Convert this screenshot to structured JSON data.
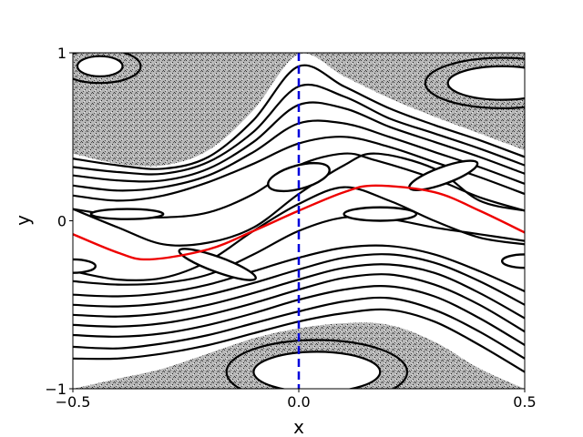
{
  "chart_data": {
    "type": "line",
    "title": "",
    "xlabel": "x",
    "ylabel": "y",
    "xlim": [
      -0.5,
      0.5
    ],
    "ylim": [
      -1,
      1
    ],
    "xticks": [
      -0.5,
      0.0,
      0.5
    ],
    "xtick_labels": [
      "−0.5",
      "0.0",
      "0.5"
    ],
    "yticks": [
      -1,
      0,
      1
    ],
    "ytick_labels": [
      "−1",
      "0",
      "1"
    ],
    "grid": false,
    "legend": "none",
    "colors": {
      "orbit": "#000000",
      "shearless_curve": "#ee0000",
      "marker_line": "#0000dd",
      "chaotic_sea": "#555555"
    },
    "marker_line": {
      "x": 0.0,
      "style": "dashed"
    },
    "chaotic_region_boundaries": {
      "upper_lower_edge": {
        "x": [
          -0.5,
          -0.4,
          -0.3,
          -0.2,
          -0.1,
          0.0,
          0.1,
          0.2,
          0.3,
          0.4,
          0.5
        ],
        "y": [
          0.4,
          0.34,
          0.33,
          0.42,
          0.66,
          0.99,
          0.86,
          0.73,
          0.62,
          0.52,
          0.42
        ]
      },
      "lower_upper_edge": {
        "x": [
          -0.5,
          -0.4,
          -0.3,
          -0.2,
          -0.1,
          0.0,
          0.1,
          0.2,
          0.3,
          0.4,
          0.5
        ],
        "y": [
          -1.0,
          -0.94,
          -0.88,
          -0.79,
          -0.7,
          -0.64,
          -0.61,
          -0.62,
          -0.72,
          -0.88,
          -1.0
        ]
      }
    },
    "series": [
      {
        "role": "shearless_curve",
        "x": [
          -0.5,
          -0.4,
          -0.33,
          -0.2,
          -0.1,
          0.0,
          0.1,
          0.17,
          0.3,
          0.4,
          0.5
        ],
        "y": [
          -0.08,
          -0.19,
          -0.23,
          -0.17,
          -0.06,
          0.06,
          0.17,
          0.21,
          0.17,
          0.06,
          -0.07
        ]
      },
      {
        "role": "orbit",
        "x": [
          -0.5,
          -0.4,
          -0.3,
          -0.2,
          -0.1,
          0.0,
          0.1,
          0.2,
          0.3,
          0.4,
          0.5
        ],
        "y": [
          0.37,
          0.33,
          0.31,
          0.38,
          0.6,
          0.92,
          0.8,
          0.67,
          0.57,
          0.48,
          0.38
        ]
      },
      {
        "role": "orbit",
        "x": [
          -0.5,
          -0.4,
          -0.3,
          -0.2,
          -0.1,
          0.0,
          0.1,
          0.2,
          0.3,
          0.4,
          0.5
        ],
        "y": [
          0.32,
          0.29,
          0.28,
          0.35,
          0.53,
          0.8,
          0.74,
          0.61,
          0.52,
          0.43,
          0.33
        ]
      },
      {
        "role": "orbit",
        "x": [
          -0.5,
          -0.4,
          -0.3,
          -0.2,
          -0.1,
          0.0,
          0.1,
          0.2,
          0.3,
          0.4,
          0.5
        ],
        "y": [
          0.27,
          0.24,
          0.24,
          0.31,
          0.47,
          0.69,
          0.67,
          0.56,
          0.47,
          0.38,
          0.28
        ]
      },
      {
        "role": "orbit",
        "x": [
          -0.5,
          -0.4,
          -0.3,
          -0.2,
          -0.1,
          0.0,
          0.1,
          0.2,
          0.3,
          0.4,
          0.5
        ],
        "y": [
          0.21,
          0.18,
          0.2,
          0.27,
          0.41,
          0.58,
          0.58,
          0.5,
          0.41,
          0.32,
          0.22
        ]
      },
      {
        "role": "orbit",
        "x": [
          -0.5,
          -0.4,
          -0.3,
          -0.2,
          -0.1,
          0.0,
          0.1,
          0.2,
          0.3,
          0.4,
          0.5
        ],
        "y": [
          0.15,
          0.12,
          0.15,
          0.23,
          0.34,
          0.46,
          0.5,
          0.44,
          0.35,
          0.26,
          0.16
        ]
      },
      {
        "role": "orbit",
        "x": [
          -0.5,
          -0.4,
          -0.3,
          -0.2,
          -0.1,
          0.0,
          0.1,
          0.17,
          0.3,
          0.4,
          0.5
        ],
        "y": [
          0.07,
          0.03,
          0.02,
          0.05,
          0.16,
          0.33,
          0.4,
          0.36,
          0.25,
          0.14,
          0.06
        ]
      },
      {
        "role": "orbit",
        "x": [
          -0.5,
          -0.4,
          -0.3,
          -0.2,
          -0.1,
          0.0,
          0.1,
          0.17,
          0.3,
          0.4,
          0.5
        ],
        "y": [
          0.07,
          -0.04,
          -0.14,
          -0.13,
          -0.04,
          0.16,
          0.33,
          0.4,
          0.31,
          0.12,
          0.06
        ]
      },
      {
        "role": "orbit",
        "x": [
          -0.5,
          -0.4,
          -0.3,
          -0.2,
          -0.1,
          0.0,
          0.1,
          0.2,
          0.3,
          0.4,
          0.5
        ],
        "y": [
          -0.3,
          -0.35,
          -0.34,
          -0.24,
          -0.06,
          0.1,
          0.2,
          0.12,
          0.0,
          -0.1,
          -0.14
        ]
      },
      {
        "role": "orbit",
        "x": [
          -0.5,
          -0.4,
          -0.3,
          -0.2,
          -0.1,
          0.0,
          0.1,
          0.2,
          0.3,
          0.4,
          0.5
        ],
        "y": [
          -0.36,
          -0.38,
          -0.37,
          -0.32,
          -0.2,
          -0.06,
          0.02,
          0.01,
          -0.04,
          -0.08,
          -0.12
        ]
      },
      {
        "role": "orbit",
        "x": [
          -0.5,
          -0.4,
          -0.3,
          -0.2,
          -0.1,
          0.0,
          0.1,
          0.2,
          0.3,
          0.4,
          0.5
        ],
        "y": [
          -0.44,
          -0.45,
          -0.43,
          -0.38,
          -0.3,
          -0.22,
          -0.16,
          -0.15,
          -0.2,
          -0.3,
          -0.42
        ]
      },
      {
        "role": "orbit",
        "x": [
          -0.5,
          -0.4,
          -0.3,
          -0.2,
          -0.1,
          0.0,
          0.1,
          0.2,
          0.3,
          0.4,
          0.5
        ],
        "y": [
          -0.5,
          -0.51,
          -0.49,
          -0.44,
          -0.37,
          -0.29,
          -0.22,
          -0.2,
          -0.25,
          -0.36,
          -0.5
        ]
      },
      {
        "role": "orbit",
        "x": [
          -0.5,
          -0.4,
          -0.3,
          -0.2,
          -0.1,
          0.0,
          0.1,
          0.2,
          0.3,
          0.4,
          0.5
        ],
        "y": [
          -0.56,
          -0.57,
          -0.55,
          -0.5,
          -0.43,
          -0.35,
          -0.28,
          -0.26,
          -0.31,
          -0.43,
          -0.58
        ]
      },
      {
        "role": "orbit",
        "x": [
          -0.5,
          -0.4,
          -0.3,
          -0.2,
          -0.1,
          0.0,
          0.1,
          0.2,
          0.3,
          0.4,
          0.5
        ],
        "y": [
          -0.62,
          -0.63,
          -0.61,
          -0.56,
          -0.49,
          -0.41,
          -0.34,
          -0.32,
          -0.38,
          -0.5,
          -0.66
        ]
      },
      {
        "role": "orbit",
        "x": [
          -0.5,
          -0.4,
          -0.3,
          -0.2,
          -0.1,
          0.0,
          0.1,
          0.2,
          0.3,
          0.4,
          0.5
        ],
        "y": [
          -0.68,
          -0.69,
          -0.67,
          -0.62,
          -0.55,
          -0.47,
          -0.41,
          -0.39,
          -0.45,
          -0.58,
          -0.74
        ]
      },
      {
        "role": "orbit",
        "x": [
          -0.5,
          -0.4,
          -0.3,
          -0.2,
          -0.1,
          0.0,
          0.1,
          0.2,
          0.3,
          0.4,
          0.5
        ],
        "y": [
          -0.75,
          -0.76,
          -0.73,
          -0.68,
          -0.61,
          -0.54,
          -0.48,
          -0.46,
          -0.53,
          -0.66,
          -0.82
        ]
      },
      {
        "role": "orbit",
        "x": [
          -0.5,
          -0.4,
          -0.3,
          -0.2,
          -0.1,
          0.0,
          0.1,
          0.2,
          0.3,
          0.4,
          0.5
        ],
        "y": [
          -0.82,
          -0.82,
          -0.79,
          -0.74,
          -0.67,
          -0.6,
          -0.55,
          -0.53,
          -0.6,
          -0.74,
          -0.9
        ]
      }
    ],
    "islands": [
      {
        "cx": -0.38,
        "cy": 0.04,
        "rx": 0.08,
        "ry": 0.03,
        "rot": 0
      },
      {
        "cx": -0.18,
        "cy": -0.26,
        "rx": 0.09,
        "ry": 0.045,
        "rot": 20
      },
      {
        "cx": -0.5,
        "cy": -0.27,
        "rx": 0.05,
        "ry": 0.04,
        "rot": 0
      },
      {
        "cx": 0.0,
        "cy": 0.26,
        "rx": 0.07,
        "ry": 0.07,
        "rot": -15
      },
      {
        "cx": 0.18,
        "cy": 0.04,
        "rx": 0.08,
        "ry": 0.04,
        "rot": 0
      },
      {
        "cx": 0.32,
        "cy": 0.27,
        "rx": 0.08,
        "ry": 0.05,
        "rot": -20
      },
      {
        "cx": 0.5,
        "cy": -0.24,
        "rx": 0.05,
        "ry": 0.04,
        "rot": 0
      }
    ],
    "resonance_loops": [
      {
        "cx": -0.44,
        "cy": 0.92,
        "rx": 0.05,
        "ry": 0.06
      },
      {
        "cx": -0.44,
        "cy": 0.92,
        "rx": 0.09,
        "ry": 0.1
      },
      {
        "cx": 0.45,
        "cy": 0.82,
        "rx": 0.07,
        "ry": 0.06
      },
      {
        "cx": 0.45,
        "cy": 0.82,
        "rx": 0.12,
        "ry": 0.1
      },
      {
        "cx": 0.45,
        "cy": 0.82,
        "rx": 0.17,
        "ry": 0.15
      },
      {
        "cx": 0.04,
        "cy": -0.9,
        "rx": 0.09,
        "ry": 0.07
      },
      {
        "cx": 0.04,
        "cy": -0.9,
        "rx": 0.14,
        "ry": 0.12
      },
      {
        "cx": 0.04,
        "cy": -0.9,
        "rx": 0.2,
        "ry": 0.19
      }
    ]
  }
}
